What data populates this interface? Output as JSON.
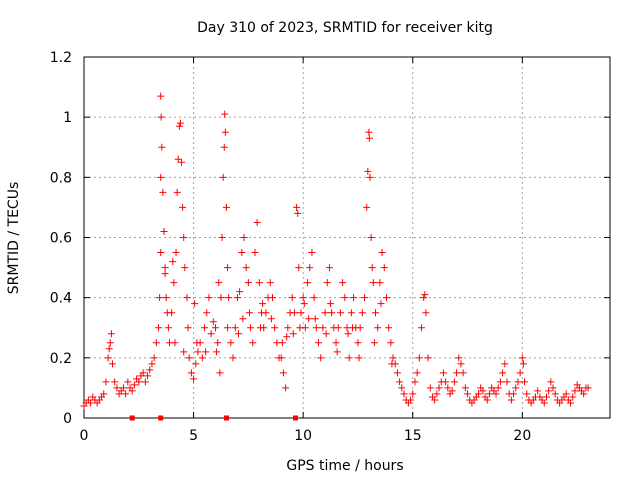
{
  "chart_data": {
    "type": "scatter",
    "title": "Day 310 of 2023, SRMTID for receiver kitg",
    "xlabel": "GPS time / hours",
    "ylabel": "SRMTID / TECUs",
    "xlim": [
      0,
      24
    ],
    "ylim": [
      0,
      1.2
    ],
    "x_ticks": [
      0,
      5,
      10,
      15,
      20
    ],
    "y_ticks": [
      0,
      0.2,
      0.4,
      0.6,
      0.8,
      1,
      1.2
    ],
    "x_tick_labels": [
      "0",
      "5",
      "10",
      "15",
      "20"
    ],
    "y_tick_labels": [
      "0",
      "0.2",
      "0.4",
      "0.6",
      "0.8",
      "1",
      "1.2"
    ],
    "grid": true,
    "marker": "plus",
    "color": "#ff0000",
    "series": [
      {
        "name": "SRMTID",
        "points": [
          [
            0.0,
            0.04
          ],
          [
            0.1,
            0.05
          ],
          [
            0.2,
            0.06
          ],
          [
            0.3,
            0.05
          ],
          [
            0.4,
            0.07
          ],
          [
            0.5,
            0.06
          ],
          [
            0.6,
            0.05
          ],
          [
            0.7,
            0.06
          ],
          [
            0.8,
            0.07
          ],
          [
            0.9,
            0.08
          ],
          [
            1.0,
            0.12
          ],
          [
            1.1,
            0.2
          ],
          [
            1.15,
            0.23
          ],
          [
            1.2,
            0.25
          ],
          [
            1.25,
            0.28
          ],
          [
            1.3,
            0.18
          ],
          [
            1.4,
            0.12
          ],
          [
            1.5,
            0.1
          ],
          [
            1.6,
            0.08
          ],
          [
            1.7,
            0.09
          ],
          [
            1.8,
            0.1
          ],
          [
            1.9,
            0.08
          ],
          [
            2.0,
            0.12
          ],
          [
            2.1,
            0.1
          ],
          [
            2.2,
            0.09
          ],
          [
            2.3,
            0.11
          ],
          [
            2.4,
            0.13
          ],
          [
            2.5,
            0.12
          ],
          [
            2.6,
            0.14
          ],
          [
            2.7,
            0.15
          ],
          [
            2.8,
            0.12
          ],
          [
            2.9,
            0.14
          ],
          [
            3.0,
            0.16
          ],
          [
            3.1,
            0.18
          ],
          [
            3.2,
            0.2
          ],
          [
            3.3,
            0.25
          ],
          [
            3.4,
            0.3
          ],
          [
            3.45,
            0.4
          ],
          [
            3.5,
            0.55
          ],
          [
            3.5,
            0.8
          ],
          [
            3.5,
            1.07
          ],
          [
            3.52,
            1.0
          ],
          [
            3.55,
            0.9
          ],
          [
            3.6,
            0.75
          ],
          [
            3.65,
            0.62
          ],
          [
            3.7,
            0.5
          ],
          [
            3.75,
            0.4
          ],
          [
            3.8,
            0.35
          ],
          [
            3.85,
            0.3
          ],
          [
            3.9,
            0.25
          ],
          [
            4.0,
            0.35
          ],
          [
            4.1,
            0.45
          ],
          [
            4.2,
            0.55
          ],
          [
            4.25,
            0.75
          ],
          [
            4.3,
            0.86
          ],
          [
            4.35,
            0.97
          ],
          [
            4.4,
            0.98
          ],
          [
            4.45,
            0.85
          ],
          [
            4.5,
            0.7
          ],
          [
            4.55,
            0.6
          ],
          [
            4.6,
            0.5
          ],
          [
            4.7,
            0.4
          ],
          [
            4.75,
            0.3
          ],
          [
            4.8,
            0.2
          ],
          [
            4.9,
            0.15
          ],
          [
            5.0,
            0.13
          ],
          [
            5.1,
            0.18
          ],
          [
            5.2,
            0.22
          ],
          [
            5.3,
            0.25
          ],
          [
            5.4,
            0.2
          ],
          [
            5.5,
            0.3
          ],
          [
            5.6,
            0.35
          ],
          [
            5.7,
            0.4
          ],
          [
            5.8,
            0.28
          ],
          [
            5.9,
            0.32
          ],
          [
            6.0,
            0.3
          ],
          [
            6.1,
            0.25
          ],
          [
            6.2,
            0.15
          ],
          [
            6.25,
            0.4
          ],
          [
            6.3,
            0.6
          ],
          [
            6.35,
            0.8
          ],
          [
            6.4,
            0.9
          ],
          [
            6.42,
            1.01
          ],
          [
            6.45,
            0.95
          ],
          [
            6.5,
            0.7
          ],
          [
            6.55,
            0.5
          ],
          [
            6.6,
            0.4
          ],
          [
            6.7,
            0.25
          ],
          [
            6.8,
            0.2
          ],
          [
            6.9,
            0.3
          ],
          [
            7.0,
            0.4
          ],
          [
            7.1,
            0.42
          ],
          [
            7.2,
            0.55
          ],
          [
            7.3,
            0.6
          ],
          [
            7.4,
            0.5
          ],
          [
            7.5,
            0.45
          ],
          [
            7.6,
            0.3
          ],
          [
            7.7,
            0.25
          ],
          [
            7.8,
            0.55
          ],
          [
            7.9,
            0.65
          ],
          [
            8.0,
            0.45
          ],
          [
            8.1,
            0.35
          ],
          [
            8.2,
            0.3
          ],
          [
            8.3,
            0.35
          ],
          [
            8.4,
            0.4
          ],
          [
            8.5,
            0.45
          ],
          [
            8.6,
            0.4
          ],
          [
            8.7,
            0.3
          ],
          [
            8.8,
            0.25
          ],
          [
            8.9,
            0.2
          ],
          [
            9.0,
            0.2
          ],
          [
            9.1,
            0.15
          ],
          [
            9.2,
            0.1
          ],
          [
            9.3,
            0.3
          ],
          [
            9.4,
            0.35
          ],
          [
            9.5,
            0.4
          ],
          [
            9.6,
            0.35
          ],
          [
            9.7,
            0.7
          ],
          [
            9.75,
            0.68
          ],
          [
            9.8,
            0.5
          ],
          [
            9.85,
            0.3
          ],
          [
            9.9,
            0.35
          ],
          [
            10.0,
            0.4
          ],
          [
            10.1,
            0.3
          ],
          [
            10.2,
            0.45
          ],
          [
            10.3,
            0.5
          ],
          [
            10.4,
            0.55
          ],
          [
            10.5,
            0.4
          ],
          [
            10.6,
            0.3
          ],
          [
            10.7,
            0.25
          ],
          [
            10.8,
            0.2
          ],
          [
            10.9,
            0.3
          ],
          [
            11.0,
            0.35
          ],
          [
            11.1,
            0.45
          ],
          [
            11.2,
            0.5
          ],
          [
            11.3,
            0.35
          ],
          [
            11.4,
            0.3
          ],
          [
            11.5,
            0.25
          ],
          [
            11.6,
            0.3
          ],
          [
            11.7,
            0.35
          ],
          [
            11.8,
            0.45
          ],
          [
            11.9,
            0.4
          ],
          [
            12.0,
            0.3
          ],
          [
            12.1,
            0.2
          ],
          [
            12.2,
            0.35
          ],
          [
            12.3,
            0.4
          ],
          [
            12.4,
            0.3
          ],
          [
            12.5,
            0.25
          ],
          [
            12.6,
            0.3
          ],
          [
            12.7,
            0.35
          ],
          [
            12.8,
            0.4
          ],
          [
            12.9,
            0.7
          ],
          [
            12.95,
            0.82
          ],
          [
            13.0,
            0.95
          ],
          [
            13.02,
            0.93
          ],
          [
            13.05,
            0.8
          ],
          [
            13.1,
            0.6
          ],
          [
            13.2,
            0.45
          ],
          [
            13.3,
            0.35
          ],
          [
            13.4,
            0.3
          ],
          [
            13.5,
            0.45
          ],
          [
            13.6,
            0.55
          ],
          [
            13.7,
            0.5
          ],
          [
            13.8,
            0.4
          ],
          [
            13.9,
            0.3
          ],
          [
            14.0,
            0.25
          ],
          [
            14.1,
            0.2
          ],
          [
            14.2,
            0.18
          ],
          [
            14.3,
            0.15
          ],
          [
            14.4,
            0.12
          ],
          [
            14.5,
            0.1
          ],
          [
            14.6,
            0.08
          ],
          [
            14.7,
            0.06
          ],
          [
            14.8,
            0.05
          ],
          [
            14.9,
            0.06
          ],
          [
            15.0,
            0.08
          ],
          [
            15.1,
            0.12
          ],
          [
            15.2,
            0.15
          ],
          [
            15.3,
            0.2
          ],
          [
            15.4,
            0.3
          ],
          [
            15.5,
            0.4
          ],
          [
            15.55,
            0.41
          ],
          [
            15.6,
            0.35
          ],
          [
            15.7,
            0.2
          ],
          [
            15.8,
            0.1
          ],
          [
            15.9,
            0.07
          ],
          [
            16.0,
            0.06
          ],
          [
            16.1,
            0.08
          ],
          [
            16.2,
            0.1
          ],
          [
            16.3,
            0.12
          ],
          [
            16.4,
            0.15
          ],
          [
            16.5,
            0.12
          ],
          [
            16.6,
            0.1
          ],
          [
            16.7,
            0.08
          ],
          [
            16.8,
            0.09
          ],
          [
            16.9,
            0.12
          ],
          [
            17.0,
            0.15
          ],
          [
            17.1,
            0.2
          ],
          [
            17.2,
            0.18
          ],
          [
            17.3,
            0.15
          ],
          [
            17.4,
            0.1
          ],
          [
            17.5,
            0.08
          ],
          [
            17.6,
            0.06
          ],
          [
            17.7,
            0.05
          ],
          [
            17.8,
            0.06
          ],
          [
            17.9,
            0.07
          ],
          [
            18.0,
            0.08
          ],
          [
            18.1,
            0.1
          ],
          [
            18.2,
            0.09
          ],
          [
            18.3,
            0.07
          ],
          [
            18.4,
            0.06
          ],
          [
            18.5,
            0.08
          ],
          [
            18.6,
            0.1
          ],
          [
            18.7,
            0.09
          ],
          [
            18.8,
            0.08
          ],
          [
            18.9,
            0.1
          ],
          [
            19.0,
            0.12
          ],
          [
            19.1,
            0.15
          ],
          [
            19.2,
            0.18
          ],
          [
            19.3,
            0.12
          ],
          [
            19.4,
            0.08
          ],
          [
            19.5,
            0.06
          ],
          [
            19.6,
            0.08
          ],
          [
            19.7,
            0.1
          ],
          [
            19.8,
            0.12
          ],
          [
            19.9,
            0.15
          ],
          [
            20.0,
            0.2
          ],
          [
            20.05,
            0.18
          ],
          [
            20.1,
            0.12
          ],
          [
            20.2,
            0.08
          ],
          [
            20.3,
            0.06
          ],
          [
            20.4,
            0.05
          ],
          [
            20.5,
            0.06
          ],
          [
            20.6,
            0.07
          ],
          [
            20.7,
            0.09
          ],
          [
            20.8,
            0.07
          ],
          [
            20.9,
            0.06
          ],
          [
            21.0,
            0.05
          ],
          [
            21.1,
            0.07
          ],
          [
            21.2,
            0.09
          ],
          [
            21.3,
            0.12
          ],
          [
            21.4,
            0.1
          ],
          [
            21.5,
            0.08
          ],
          [
            21.6,
            0.06
          ],
          [
            21.7,
            0.05
          ],
          [
            21.8,
            0.06
          ],
          [
            21.9,
            0.07
          ],
          [
            22.0,
            0.08
          ],
          [
            22.1,
            0.06
          ],
          [
            22.2,
            0.05
          ],
          [
            22.3,
            0.07
          ],
          [
            22.4,
            0.09
          ],
          [
            22.5,
            0.11
          ],
          [
            22.6,
            0.1
          ],
          [
            22.7,
            0.09
          ],
          [
            22.8,
            0.08
          ],
          [
            22.9,
            0.1
          ],
          [
            23.0,
            0.1
          ],
          [
            3.7,
            0.48
          ],
          [
            4.05,
            0.52
          ],
          [
            5.05,
            0.38
          ],
          [
            6.15,
            0.45
          ],
          [
            7.25,
            0.33
          ],
          [
            8.15,
            0.38
          ],
          [
            9.25,
            0.27
          ],
          [
            10.25,
            0.33
          ],
          [
            11.25,
            0.38
          ],
          [
            12.25,
            0.3
          ],
          [
            13.25,
            0.25
          ],
          [
            4.15,
            0.25
          ],
          [
            5.15,
            0.25
          ],
          [
            6.05,
            0.22
          ],
          [
            7.05,
            0.28
          ],
          [
            8.05,
            0.3
          ],
          [
            9.05,
            0.25
          ],
          [
            10.05,
            0.38
          ],
          [
            11.05,
            0.28
          ],
          [
            12.05,
            0.28
          ],
          [
            13.15,
            0.5
          ],
          [
            13.55,
            0.38
          ],
          [
            4.55,
            0.22
          ],
          [
            5.55,
            0.22
          ],
          [
            6.55,
            0.3
          ],
          [
            7.55,
            0.35
          ],
          [
            8.55,
            0.33
          ],
          [
            9.55,
            0.28
          ],
          [
            10.55,
            0.33
          ],
          [
            11.55,
            0.22
          ],
          [
            12.55,
            0.2
          ],
          [
            14.05,
            0.18
          ]
        ]
      }
    ],
    "gap_markers_x": [
      2.2,
      3.5,
      6.5,
      9.65
    ]
  }
}
